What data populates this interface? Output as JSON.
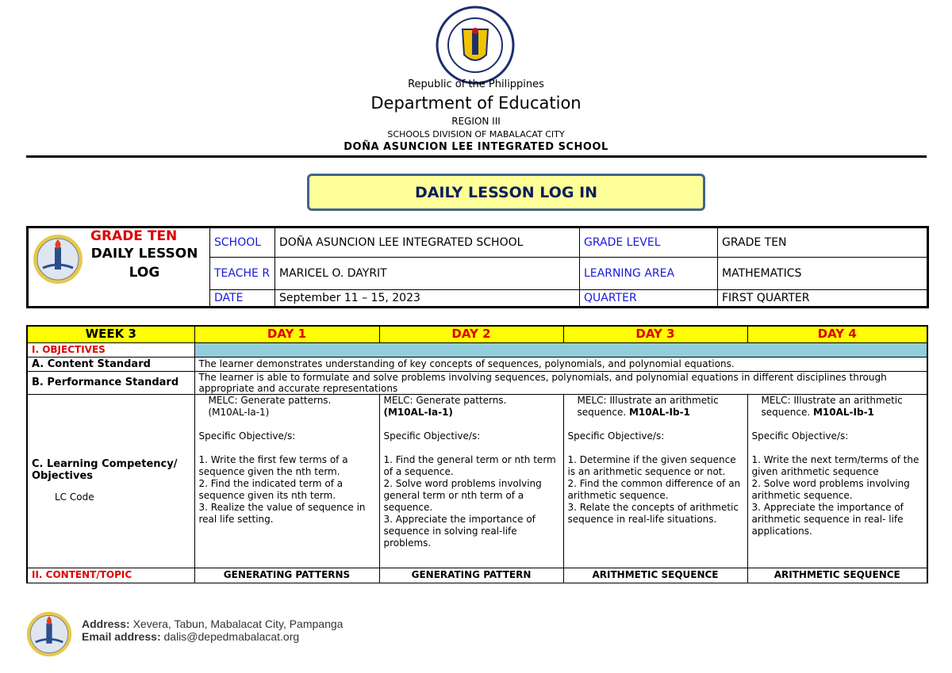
{
  "header": {
    "seal_text": "KAGAWARAN NG EDUKASYON · REPUBLIKA NG PILIPINAS",
    "line1": "Republic of the Philippines",
    "line2": "Department of Education",
    "line3": "REGION III",
    "line4": "SCHOOLS DIVISION OF MABALACAT CITY",
    "line5": "DOÑA ASUNCION LEE INTEGRATED SCHOOL"
  },
  "title": "DAILY LESSON LOG IN",
  "info": {
    "logo_year": "2009",
    "grade_title": "GRADE TEN",
    "dll_line1": "DAILY LESSON",
    "dll_line2": "LOG",
    "school_label": "SCHOOL",
    "school": "DOÑA ASUNCION LEE INTEGRATED SCHOOL",
    "teacher_label": "TEACHE R",
    "teacher": "MARICEL O. DAYRIT",
    "date_label": "DATE",
    "date": "September 11 – 15, 2023",
    "grade_level_label": "GRADE LEVEL",
    "grade_level": "GRADE TEN",
    "learning_area_label": "LEARNING AREA",
    "learning_area": "MATHEMATICS",
    "quarter_label": "QUARTER",
    "quarter": "FIRST QUARTER"
  },
  "log": {
    "week": "WEEK 3",
    "days": [
      "DAY 1",
      "DAY 2",
      "DAY 3",
      "DAY 4"
    ],
    "objectives": "I. OBJECTIVES",
    "content_standard_label": "A.   Content Standard",
    "content_standard": "The learner demonstrates understanding of key concepts of sequences, polynomials, and polynomial equations.",
    "performance_standard_label": "B.   Performance Standard",
    "performance_standard": "The learner is able to formulate and solve problems involving sequences, polynomials, and polynomial equations in different disciplines through appropriate and accurate representations",
    "competency_label": "C.   Learning Competency/ Objectives",
    "lc_code_label": "LC Code",
    "competencies": [
      {
        "melc": "MELC: Generate patterns.",
        "code": "(M10AL-Ia-1)",
        "specific": "Specific Objective/s:",
        "items": [
          "1. Write the first few terms of a sequence given the nth term.",
          "2. Find the indicated term of a sequence given its nth term.",
          "3.  Realize the value of sequence in real life setting."
        ]
      },
      {
        "melc": "MELC: Generate patterns.",
        "code": "(M10AL-Ia-1)",
        "specific": "Specific Objective/s:",
        "items": [
          "1. Find the general term or nth term of a sequence.",
          "2. Solve word problems involving general term or nth term of a sequence.",
          "3.  Appreciate the importance of sequence in solving real-life problems."
        ]
      },
      {
        "melc": "MELC:  Illustrate an arithmetic sequence.",
        "code": "M10AL-Ib-1",
        "specific": "Specific Objective/s:",
        "items": [
          "1.  Determine if the given sequence is an arithmetic sequence or not.",
          "2. Find the common difference of an arithmetic sequence.",
          "3. Relate the concepts of arithmetic sequence in real-life situations."
        ]
      },
      {
        "melc": "MELC:  Illustrate an arithmetic sequence.",
        "code": "M10AL-Ib-1",
        "specific": "Specific Objective/s:",
        "items": [
          "1.  Write the next term/terms of the given arithmetic sequence",
          "2. Solve word problems involving arithmetic sequence.",
          "3. Appreciate the importance of arithmetic sequence in real- life applications."
        ]
      }
    ],
    "content_label": "II. CONTENT/TOPIC",
    "topics": [
      "GENERATING PATTERNS",
      "GENERATING PATTERN",
      "ARITHMETIC SEQUENCE",
      "ARITHMETIC SEQUENCE"
    ]
  },
  "footer": {
    "address_label": "Address:",
    "address": "Xevera, Tabun, Mabalacat City, Pampanga",
    "email_label": "Email address:",
    "email": "dalis@depedmabalacat.org"
  },
  "colors": {
    "title_bg": "#ffff99",
    "title_border": "#41648f",
    "title_text": "#0a1f5c",
    "day_header_bg": "#ffff00",
    "objectives_bar": "#92cddc",
    "label_blue": "#1a1adb",
    "label_red": "#e00000"
  }
}
